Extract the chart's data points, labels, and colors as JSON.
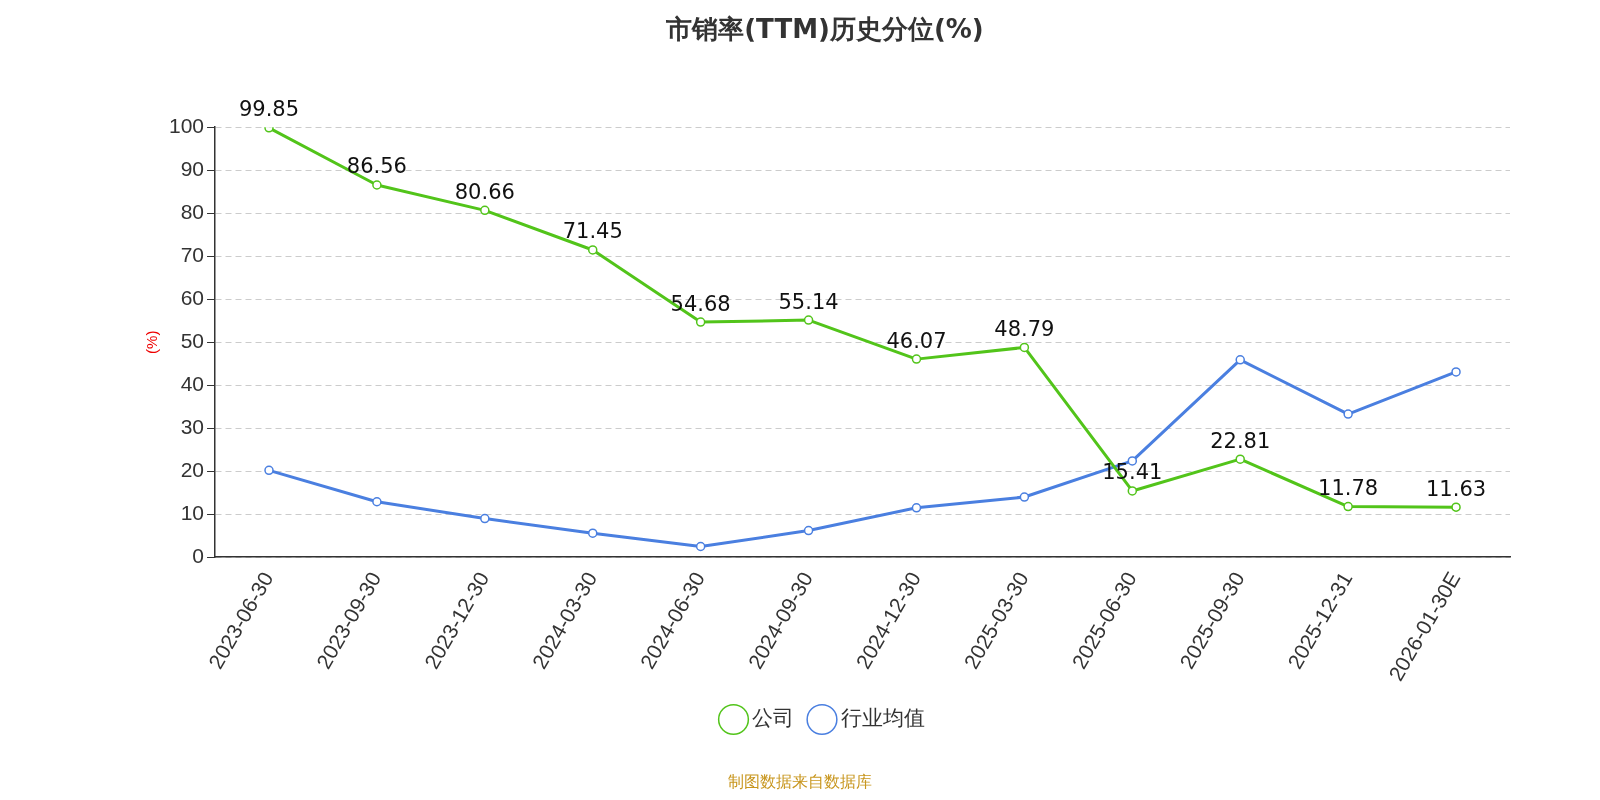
{
  "chart_data": {
    "type": "line",
    "title": "市销率(TTM)历史分位(%)",
    "ylabel": "(%)",
    "categories": [
      "2023-06-30",
      "2023-09-30",
      "2023-12-30",
      "2024-03-30",
      "2024-06-30",
      "2024-09-30",
      "2024-12-30",
      "2025-03-30",
      "2025-06-30",
      "2025-09-30",
      "2025-12-31",
      "2026-01-30E"
    ],
    "series": [
      {
        "name": "公司",
        "color": "#52c41a",
        "values": [
          99.85,
          86.56,
          80.66,
          71.45,
          54.68,
          55.14,
          46.07,
          48.79,
          15.41,
          22.81,
          11.78,
          11.63
        ],
        "value_labels": [
          "99.85",
          "86.56",
          "80.66",
          "71.45",
          "54.68",
          "55.14",
          "46.07",
          "48.79",
          "15.41",
          "22.81",
          "11.78",
          "11.63"
        ]
      },
      {
        "name": "行业均值",
        "color": "#4a7fe0",
        "values": [
          20.2,
          12.9,
          9.0,
          5.6,
          2.5,
          6.2,
          11.5,
          14.0,
          22.4,
          45.9,
          33.3,
          43.1
        ]
      }
    ],
    "ylim": [
      0,
      100
    ],
    "yticks": [
      0,
      10,
      20,
      30,
      40,
      50,
      60,
      70,
      80,
      90,
      100
    ],
    "grid": "y",
    "legend": "bottom",
    "marker": "circle",
    "line_style": "solid",
    "annotations": [
      "制图数据来自数据库"
    ]
  }
}
